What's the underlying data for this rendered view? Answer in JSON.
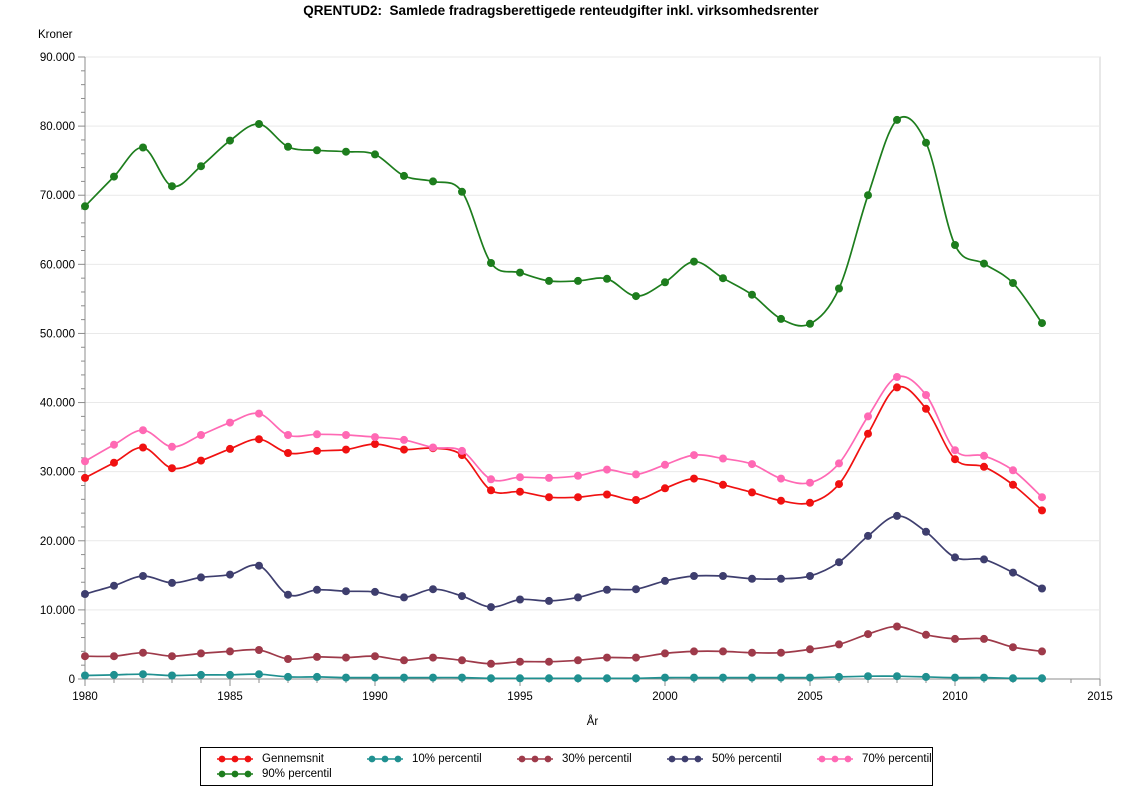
{
  "title": "QRENTUD2:  Samlede fradragsberettigede renteudgifter inkl. virksomhedsrenter",
  "chart_data": {
    "type": "line",
    "title": "QRENTUD2:  Samlede fradragsberettigede renteudgifter inkl. virksomhedsrenter",
    "ylabel": "Kroner",
    "xlabel": "År",
    "grid": "horizontal",
    "legend_position": "bottom",
    "x": [
      1980,
      1981,
      1982,
      1983,
      1984,
      1985,
      1986,
      1987,
      1988,
      1989,
      1990,
      1991,
      1992,
      1993,
      1994,
      1995,
      1996,
      1997,
      1998,
      1999,
      2000,
      2001,
      2002,
      2003,
      2004,
      2005,
      2006,
      2007,
      2008,
      2009,
      2010,
      2011,
      2012,
      2013
    ],
    "x_axis": {
      "min": 1980,
      "max": 2015,
      "major_step": 5,
      "minor_step": 1,
      "labels": [
        "1980",
        "1985",
        "1990",
        "1995",
        "2000",
        "2005",
        "2010",
        "2015"
      ]
    },
    "y_axis": {
      "min": 0,
      "max": 90000,
      "major_step": 10000,
      "minor_step": 2000,
      "labels": [
        "0",
        "10.000",
        "20.000",
        "30.000",
        "40.000",
        "50.000",
        "60.000",
        "70.000",
        "80.000",
        "90.000"
      ]
    },
    "series": [
      {
        "name": "Gennemsnit",
        "color": "#f01111",
        "values": [
          29100,
          31300,
          33500,
          30500,
          31600,
          33300,
          34700,
          32700,
          33000,
          33200,
          34000,
          33200,
          33400,
          32400,
          27300,
          27100,
          26300,
          26300,
          26700,
          25900,
          27600,
          29000,
          28100,
          27000,
          25800,
          25500,
          28200,
          35500,
          42200,
          39100,
          31800,
          30700,
          28100,
          24400
        ]
      },
      {
        "name": "10% percentil",
        "color": "#1f9090",
        "values": [
          500,
          600,
          700,
          500,
          600,
          600,
          700,
          300,
          300,
          200,
          200,
          200,
          200,
          200,
          100,
          100,
          100,
          100,
          100,
          100,
          200,
          200,
          200,
          200,
          200,
          200,
          300,
          400,
          400,
          300,
          200,
          200,
          100,
          100
        ]
      },
      {
        "name": "30% percentil",
        "color": "#9e3a4a",
        "values": [
          3300,
          3300,
          3800,
          3300,
          3700,
          4000,
          4200,
          2900,
          3200,
          3100,
          3300,
          2700,
          3100,
          2700,
          2200,
          2500,
          2500,
          2700,
          3100,
          3100,
          3700,
          4000,
          4000,
          3800,
          3800,
          4300,
          5000,
          6500,
          7600,
          6400,
          5800,
          5800,
          4600,
          4000
        ]
      },
      {
        "name": "50% percentil",
        "color": "#3e3e6e",
        "values": [
          12300,
          13500,
          14900,
          13900,
          14700,
          15100,
          16400,
          12200,
          12900,
          12700,
          12600,
          11800,
          13000,
          12000,
          10400,
          11500,
          11300,
          11800,
          12900,
          13000,
          14200,
          14900,
          14900,
          14500,
          14500,
          14900,
          16900,
          20700,
          23600,
          21300,
          17600,
          17300,
          15400,
          13100
        ]
      },
      {
        "name": "70% percentil",
        "color": "#ff69b4",
        "values": [
          31500,
          33900,
          36000,
          33600,
          35300,
          37100,
          38400,
          35300,
          35400,
          35300,
          35000,
          34600,
          33500,
          33000,
          28900,
          29200,
          29100,
          29400,
          30300,
          29600,
          31000,
          32400,
          31900,
          31100,
          29000,
          28400,
          31200,
          38000,
          43700,
          41100,
          33100,
          32300,
          30200,
          26300
        ]
      },
      {
        "name": "90% percentil",
        "color": "#1d7d1d",
        "values": [
          68400,
          72700,
          76900,
          71300,
          74200,
          77900,
          80300,
          77000,
          76500,
          76300,
          75900,
          72800,
          72000,
          70500,
          60200,
          58800,
          57600,
          57600,
          57900,
          55400,
          57400,
          60400,
          58000,
          55600,
          52100,
          51400,
          56500,
          70000,
          80900,
          77600,
          62800,
          60100,
          57300,
          51500
        ]
      }
    ]
  }
}
